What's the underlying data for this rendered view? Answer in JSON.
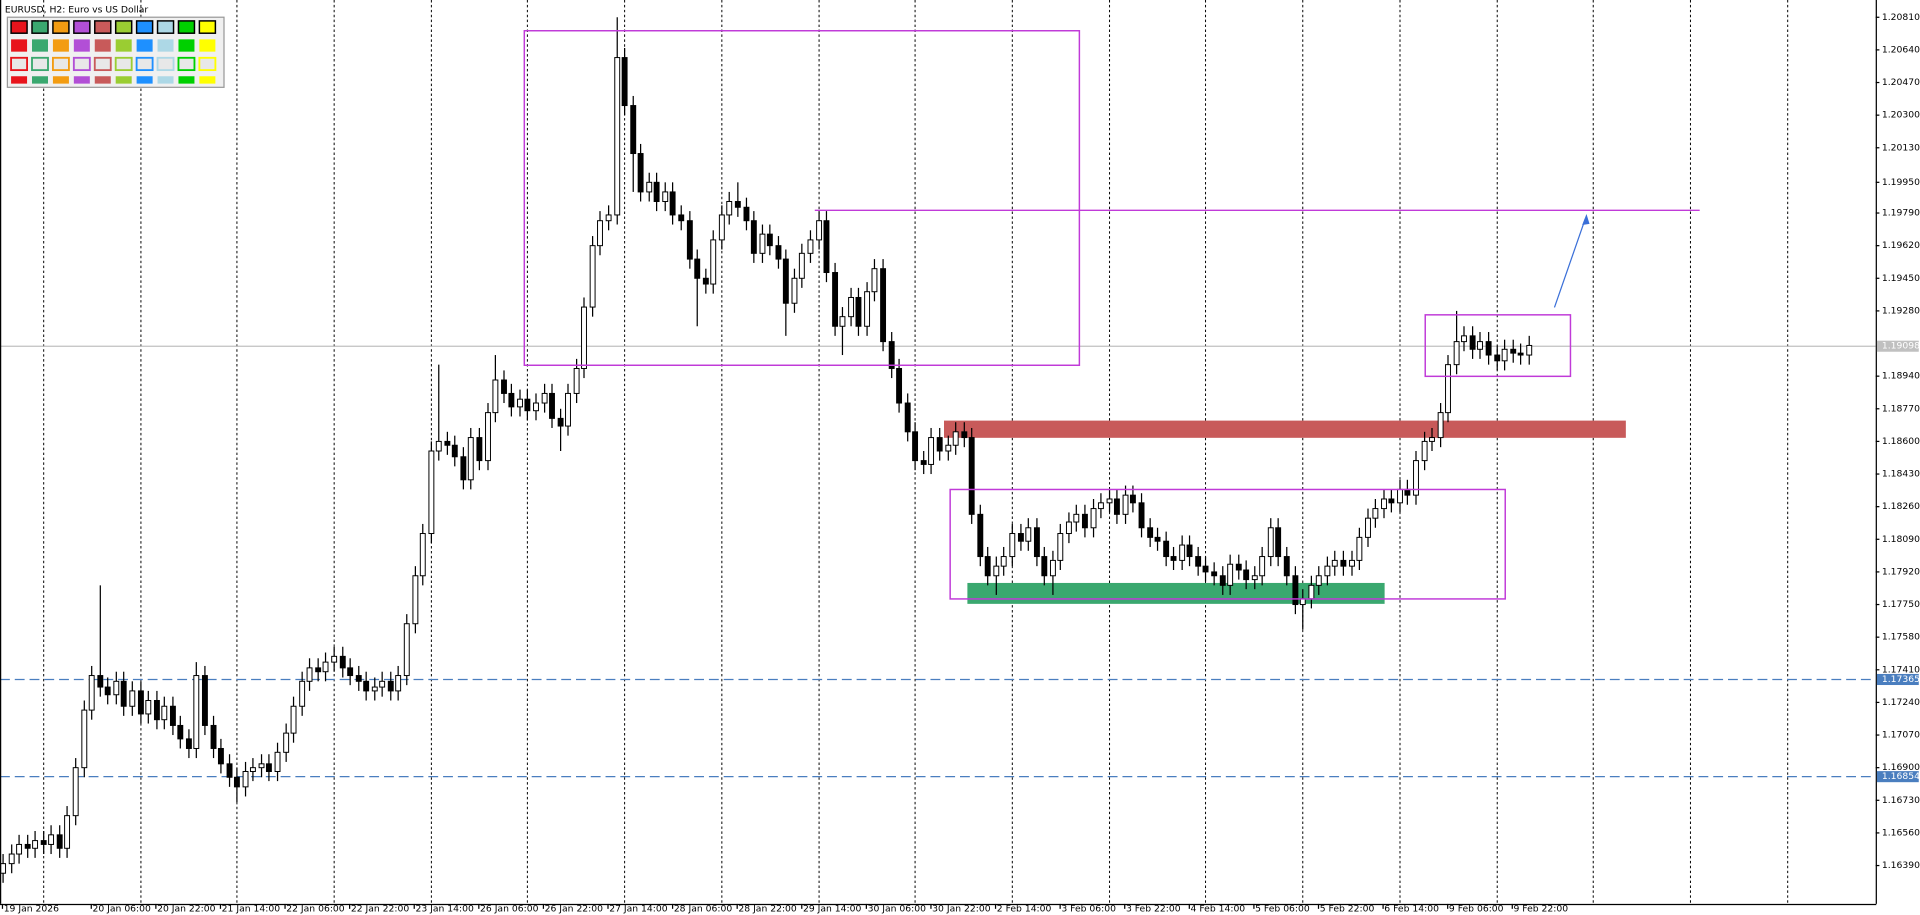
{
  "chart_data": {
    "type": "candlestick",
    "title": "EURUSD, H2:  Euro vs US Dollar",
    "categories": [
      "19 Jan 2026",
      null,
      null,
      null,
      null,
      null,
      null,
      null,
      null,
      null,
      null,
      "20 Jan 06:00",
      null,
      null,
      null,
      null,
      null,
      null,
      null,
      "20 Jan 22:00",
      null,
      null,
      null,
      null,
      null,
      null,
      null,
      "21 Jan 14:00",
      null,
      null,
      null,
      null,
      null,
      null,
      null,
      "22 Jan 06:00",
      null,
      null,
      null,
      null,
      null,
      null,
      null,
      "22 Jan 22:00",
      null,
      null,
      null,
      null,
      null,
      null,
      null,
      "23 Jan 14:00",
      null,
      null,
      null,
      null,
      null,
      null,
      null,
      "26 Jan 06:00",
      null,
      null,
      null,
      null,
      null,
      null,
      null,
      "26 Jan 22:00",
      null,
      null,
      null,
      null,
      null,
      null,
      null,
      "27 Jan 14:00",
      null,
      null,
      null,
      null,
      null,
      null,
      null,
      "28 Jan 06:00",
      null,
      null,
      null,
      null,
      null,
      null,
      null,
      "28 Jan 22:00",
      null,
      null,
      null,
      null,
      null,
      null,
      null,
      "29 Jan 14:00",
      null,
      null,
      null,
      null,
      null,
      null,
      null,
      "30 Jan 06:00",
      null,
      null,
      null,
      null,
      null,
      null,
      null,
      "30 Jan 22:00",
      null,
      null,
      null,
      null,
      null,
      null,
      null,
      "2 Feb 14:00",
      null,
      null,
      null,
      null,
      null,
      null,
      null,
      "3 Feb 06:00",
      null,
      null,
      null,
      null,
      null,
      null,
      null,
      "3 Feb 22:00",
      null,
      null,
      null,
      null,
      null,
      null,
      null,
      "4 Feb 14:00",
      null,
      null,
      null,
      null,
      null,
      null,
      null,
      "5 Feb 06:00",
      null,
      null,
      null,
      null,
      null,
      null,
      null,
      "5 Feb 22:00",
      null,
      null,
      null,
      null,
      null,
      null,
      null,
      "6 Feb 14:00",
      null,
      null,
      null,
      null,
      null,
      null,
      null,
      "9 Feb 06:00",
      null,
      null,
      null,
      null,
      null,
      null,
      null,
      "9 Feb 22:00",
      null,
      null
    ],
    "open": [
      1.1635,
      1.164,
      1.1645,
      1.165,
      1.1648,
      1.1652,
      1.165,
      1.1655,
      1.1648,
      1.1665,
      1.169,
      1.172,
      1.1738,
      1.1732,
      1.1728,
      1.1735,
      1.1722,
      1.173,
      1.1718,
      1.1725,
      1.1715,
      1.1722,
      1.1712,
      1.1705,
      1.17,
      1.1738,
      1.1712,
      1.17,
      1.1692,
      1.1685,
      1.168,
      1.1688,
      1.169,
      1.1692,
      1.1688,
      1.1698,
      1.1708,
      1.1722,
      1.1735,
      1.1742,
      1.174,
      1.1745,
      1.1748,
      1.1742,
      1.1738,
      1.1735,
      1.173,
      1.1732,
      1.1735,
      1.173,
      1.1738,
      1.1765,
      1.179,
      1.1812,
      1.1855,
      1.186,
      1.1858,
      1.1852,
      1.184,
      1.1862,
      1.185,
      1.1875,
      1.1892,
      1.1885,
      1.1878,
      1.1882,
      1.1876,
      1.188,
      1.1885,
      1.1872,
      1.1868,
      1.1885,
      1.1898,
      1.193,
      1.1962,
      1.1975,
      1.1978,
      1.206,
      1.2035,
      1.201,
      1.199,
      1.1995,
      1.1985,
      1.199,
      1.1978,
      1.1975,
      1.1955,
      1.1945,
      1.1942,
      1.1965,
      1.1978,
      1.1985,
      1.1982,
      1.1975,
      1.1958,
      1.1968,
      1.1962,
      1.1955,
      1.1932,
      1.1945,
      1.1958,
      1.1965,
      1.1975,
      1.1948,
      1.192,
      1.1925,
      1.1935,
      1.192,
      1.1938,
      1.195,
      1.1912,
      1.1898,
      1.188,
      1.1865,
      1.185,
      1.1848,
      1.1862,
      1.1855,
      1.1858,
      1.1865,
      1.1862,
      1.1822,
      1.18,
      1.179,
      1.1795,
      1.18,
      1.1812,
      1.1808,
      1.1815,
      1.18,
      1.179,
      1.1798,
      1.1812,
      1.1818,
      1.1822,
      1.1815,
      1.1825,
      1.1828,
      1.183,
      1.1822,
      1.1832,
      1.1828,
      1.1815,
      1.181,
      1.1808,
      1.18,
      1.1798,
      1.1806,
      1.18,
      1.1795,
      1.1792,
      1.179,
      1.1785,
      1.1796,
      1.1793,
      1.1788,
      1.179,
      1.18,
      1.1815,
      1.18,
      1.179,
      1.1775,
      1.1778,
      1.1785,
      1.179,
      1.1795,
      1.1798,
      1.1795,
      1.1798,
      1.181,
      1.182,
      1.1825,
      1.183,
      1.1828,
      1.1835,
      1.1832,
      1.185,
      1.186,
      1.1862,
      1.1875,
      1.19,
      1.1912,
      1.1915,
      1.1908,
      1.1912,
      1.1905,
      1.1902,
      1.1908,
      1.1906,
      1.1905
    ],
    "high": [
      1.1645,
      1.165,
      1.1655,
      1.1655,
      1.1657,
      1.1657,
      1.166,
      1.166,
      1.167,
      1.1695,
      1.1725,
      1.1743,
      1.1785,
      1.1737,
      1.174,
      1.174,
      1.1735,
      1.1735,
      1.173,
      1.173,
      1.1727,
      1.1727,
      1.1717,
      1.171,
      1.1745,
      1.1743,
      1.1717,
      1.1705,
      1.1697,
      1.169,
      1.1693,
      1.1695,
      1.1697,
      1.1697,
      1.1703,
      1.1713,
      1.1727,
      1.174,
      1.1747,
      1.1747,
      1.175,
      1.1753,
      1.1753,
      1.1747,
      1.1743,
      1.174,
      1.1737,
      1.174,
      1.174,
      1.1743,
      1.177,
      1.1795,
      1.1817,
      1.186,
      1.19,
      1.1865,
      1.1863,
      1.1857,
      1.1867,
      1.1867,
      1.188,
      1.1905,
      1.1897,
      1.189,
      1.1887,
      1.1887,
      1.1885,
      1.189,
      1.189,
      1.1877,
      1.189,
      1.1903,
      1.1935,
      1.1967,
      1.198,
      1.1983,
      1.2081,
      1.2065,
      1.204,
      1.2015,
      1.2,
      1.2,
      1.1995,
      1.1995,
      1.1983,
      1.198,
      1.196,
      1.195,
      1.197,
      1.1983,
      1.199,
      1.1995,
      1.1987,
      1.198,
      1.1973,
      1.1973,
      1.1967,
      1.196,
      1.195,
      1.1963,
      1.197,
      1.198,
      1.198,
      1.1953,
      1.193,
      1.194,
      1.194,
      1.1943,
      1.1955,
      1.1955,
      1.1917,
      1.1903,
      1.1885,
      1.187,
      1.1855,
      1.1867,
      1.1867,
      1.1863,
      1.187,
      1.187,
      1.1867,
      1.1827,
      1.1805,
      1.18,
      1.1805,
      1.1817,
      1.1817,
      1.182,
      1.182,
      1.1805,
      1.1803,
      1.1817,
      1.1823,
      1.1827,
      1.1827,
      1.183,
      1.1833,
      1.1835,
      1.1835,
      1.1837,
      1.1837,
      1.1833,
      1.182,
      1.1815,
      1.1813,
      1.1805,
      1.1811,
      1.1811,
      1.1805,
      1.18,
      1.1797,
      1.1795,
      1.1801,
      1.1801,
      1.1798,
      1.1795,
      1.1805,
      1.182,
      1.182,
      1.1805,
      1.1795,
      1.1783,
      1.179,
      1.1795,
      1.18,
      1.1803,
      1.1803,
      1.1803,
      1.1815,
      1.1825,
      1.183,
      1.1835,
      1.1835,
      1.184,
      1.184,
      1.1855,
      1.1865,
      1.1867,
      1.188,
      1.1905,
      1.1928,
      1.192,
      1.192,
      1.1917,
      1.1917,
      1.191,
      1.1913,
      1.1913,
      1.1911,
      1.1915
    ],
    "low": [
      1.163,
      1.1635,
      1.164,
      1.1643,
      1.1643,
      1.1645,
      1.1645,
      1.1643,
      1.1643,
      1.166,
      1.1685,
      1.1715,
      1.1727,
      1.1723,
      1.1723,
      1.1717,
      1.1717,
      1.1713,
      1.1713,
      1.171,
      1.171,
      1.1707,
      1.17,
      1.1695,
      1.1695,
      1.1707,
      1.1695,
      1.1687,
      1.168,
      1.1672,
      1.1675,
      1.1683,
      1.1685,
      1.1683,
      1.1683,
      1.1693,
      1.1703,
      1.1717,
      1.173,
      1.1735,
      1.1735,
      1.174,
      1.1737,
      1.1733,
      1.173,
      1.1725,
      1.1725,
      1.1727,
      1.1725,
      1.1725,
      1.1733,
      1.176,
      1.1785,
      1.1807,
      1.185,
      1.1853,
      1.1847,
      1.1835,
      1.1835,
      1.1845,
      1.1845,
      1.187,
      1.188,
      1.1873,
      1.1873,
      1.1871,
      1.1871,
      1.1875,
      1.1867,
      1.1855,
      1.1863,
      1.188,
      1.1893,
      1.1925,
      1.1957,
      1.197,
      1.1973,
      1.203,
      1.199,
      1.1985,
      1.1985,
      1.198,
      1.198,
      1.1973,
      1.197,
      1.195,
      1.192,
      1.1937,
      1.1937,
      1.196,
      1.1973,
      1.1977,
      1.197,
      1.1953,
      1.1953,
      1.1957,
      1.195,
      1.1915,
      1.1927,
      1.194,
      1.1953,
      1.196,
      1.1943,
      1.1915,
      1.1905,
      1.192,
      1.1915,
      1.1915,
      1.1933,
      1.1907,
      1.1893,
      1.1875,
      1.186,
      1.1845,
      1.1843,
      1.1843,
      1.185,
      1.185,
      1.1853,
      1.1857,
      1.1817,
      1.1795,
      1.1785,
      1.178,
      1.179,
      1.1795,
      1.1803,
      1.1803,
      1.1795,
      1.1785,
      1.178,
      1.1793,
      1.1807,
      1.1813,
      1.181,
      1.181,
      1.182,
      1.1823,
      1.1817,
      1.1817,
      1.1823,
      1.181,
      1.1805,
      1.1803,
      1.1795,
      1.1793,
      1.1793,
      1.1795,
      1.179,
      1.1787,
      1.1785,
      1.178,
      1.178,
      1.1788,
      1.1783,
      1.1783,
      1.1785,
      1.1795,
      1.1795,
      1.1785,
      1.177,
      1.1762,
      1.1773,
      1.178,
      1.1785,
      1.179,
      1.179,
      1.179,
      1.1793,
      1.1805,
      1.1815,
      1.182,
      1.1823,
      1.1823,
      1.1827,
      1.1827,
      1.1845,
      1.1855,
      1.1857,
      1.187,
      1.1895,
      1.1907,
      1.1903,
      1.1903,
      1.19,
      1.1897,
      1.1897,
      1.1901,
      1.19,
      1.19
    ],
    "close": [
      1.164,
      1.1645,
      1.165,
      1.1648,
      1.1652,
      1.165,
      1.1655,
      1.1648,
      1.1665,
      1.169,
      1.172,
      1.1738,
      1.1732,
      1.1728,
      1.1735,
      1.1722,
      1.173,
      1.1718,
      1.1725,
      1.1715,
      1.1722,
      1.1712,
      1.1705,
      1.17,
      1.1738,
      1.1712,
      1.17,
      1.1692,
      1.1685,
      1.168,
      1.1688,
      1.169,
      1.1692,
      1.1688,
      1.1698,
      1.1708,
      1.1722,
      1.1735,
      1.1742,
      1.174,
      1.1745,
      1.1748,
      1.1742,
      1.1738,
      1.1735,
      1.173,
      1.1732,
      1.1735,
      1.173,
      1.1738,
      1.1765,
      1.179,
      1.1812,
      1.1855,
      1.186,
      1.1858,
      1.1852,
      1.184,
      1.1862,
      1.185,
      1.1875,
      1.1892,
      1.1885,
      1.1878,
      1.1882,
      1.1876,
      1.188,
      1.1885,
      1.1872,
      1.1868,
      1.1885,
      1.1898,
      1.193,
      1.1962,
      1.1975,
      1.1978,
      1.206,
      1.2035,
      1.201,
      1.199,
      1.1995,
      1.1985,
      1.199,
      1.1978,
      1.1975,
      1.1955,
      1.1945,
      1.1942,
      1.1965,
      1.1978,
      1.1985,
      1.1982,
      1.1975,
      1.1958,
      1.1968,
      1.1962,
      1.1955,
      1.1932,
      1.1945,
      1.1958,
      1.1965,
      1.1975,
      1.1948,
      1.192,
      1.1925,
      1.1935,
      1.192,
      1.1938,
      1.195,
      1.1912,
      1.1898,
      1.188,
      1.1865,
      1.185,
      1.1848,
      1.1862,
      1.1855,
      1.1858,
      1.1865,
      1.1862,
      1.1822,
      1.18,
      1.179,
      1.1795,
      1.18,
      1.1812,
      1.1808,
      1.1815,
      1.18,
      1.179,
      1.1798,
      1.1812,
      1.1818,
      1.1822,
      1.1815,
      1.1825,
      1.1828,
      1.183,
      1.1822,
      1.1832,
      1.1828,
      1.1815,
      1.181,
      1.1808,
      1.18,
      1.1798,
      1.1806,
      1.18,
      1.1795,
      1.1792,
      1.179,
      1.1785,
      1.1796,
      1.1793,
      1.1788,
      1.179,
      1.18,
      1.1815,
      1.18,
      1.179,
      1.1775,
      1.1778,
      1.1785,
      1.179,
      1.1795,
      1.1798,
      1.1795,
      1.1798,
      1.181,
      1.182,
      1.1825,
      1.183,
      1.1828,
      1.1835,
      1.1832,
      1.185,
      1.186,
      1.1862,
      1.1875,
      1.19,
      1.1912,
      1.1915,
      1.1908,
      1.1912,
      1.1905,
      1.1902,
      1.1908,
      1.1906,
      1.1905,
      1.191
    ],
    "ylim": [
      1.1619,
      1.209
    ],
    "yticks": [
      {
        "value": 1.2081,
        "label": "1.20810"
      },
      {
        "value": 1.2064,
        "label": "1.20640"
      },
      {
        "value": 1.2047,
        "label": "1.20470"
      },
      {
        "value": 1.203,
        "label": "1.20300"
      },
      {
        "value": 1.2013,
        "label": "1.20130"
      },
      {
        "value": 1.1995,
        "label": "1.19950"
      },
      {
        "value": 1.1979,
        "label": "1.19790"
      },
      {
        "value": 1.1962,
        "label": "1.19620"
      },
      {
        "value": 1.1945,
        "label": "1.19450"
      },
      {
        "value": 1.1928,
        "label": "1.19280"
      },
      {
        "value": 1.1894,
        "label": "1.18940"
      },
      {
        "value": 1.1877,
        "label": "1.18770"
      },
      {
        "value": 1.186,
        "label": "1.18600"
      },
      {
        "value": 1.1843,
        "label": "1.18430"
      },
      {
        "value": 1.1826,
        "label": "1.18260"
      },
      {
        "value": 1.1809,
        "label": "1.18090"
      },
      {
        "value": 1.1792,
        "label": "1.17920"
      },
      {
        "value": 1.1775,
        "label": "1.17750"
      },
      {
        "value": 1.1758,
        "label": "1.17580"
      },
      {
        "value": 1.1741,
        "label": "1.17410"
      },
      {
        "value": 1.1724,
        "label": "1.17240"
      },
      {
        "value": 1.1707,
        "label": "1.17070"
      },
      {
        "value": 1.169,
        "label": "1.16900"
      },
      {
        "value": 1.1673,
        "label": "1.16730"
      },
      {
        "value": 1.1656,
        "label": "1.16560"
      },
      {
        "value": 1.1639,
        "label": "1.16390"
      }
    ],
    "hlines": [
      1.17365,
      1.16854
    ],
    "hline_color": "#4a7ebf",
    "current_price": 1.19098,
    "current_color": "#c0c0c0",
    "bull_color": "#ffffff",
    "bear_color": "#000000",
    "grid": true
  }
}
